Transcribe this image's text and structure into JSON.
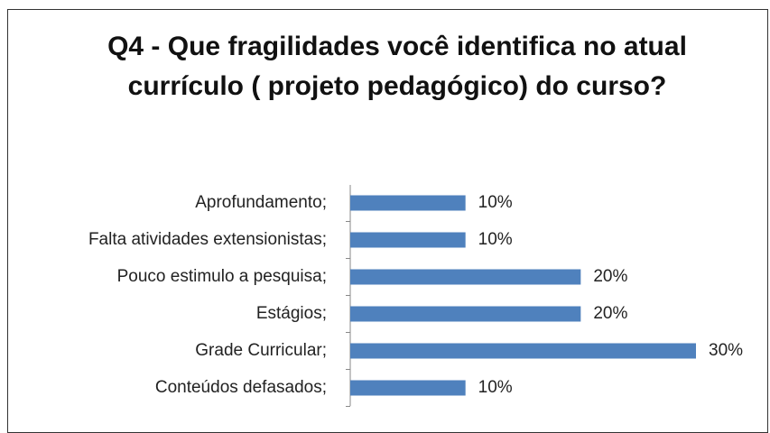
{
  "chart_data": {
    "type": "bar",
    "orientation": "horizontal",
    "title": "Q4 - Que fragilidades você identifica no atual currículo ( projeto pedagógico) do curso?",
    "categories": [
      "Aprofundamento;",
      "Falta atividades extensionistas;",
      "Pouco estimulo a pesquisa;",
      "Estágios;",
      "Grade Curricular;",
      "Conteúdos defasados;"
    ],
    "values": [
      10,
      10,
      20,
      20,
      30,
      10
    ],
    "value_labels": [
      "10%",
      "10%",
      "20%",
      "20%",
      "30%",
      "10%"
    ],
    "color": "#4f81bd"
  }
}
